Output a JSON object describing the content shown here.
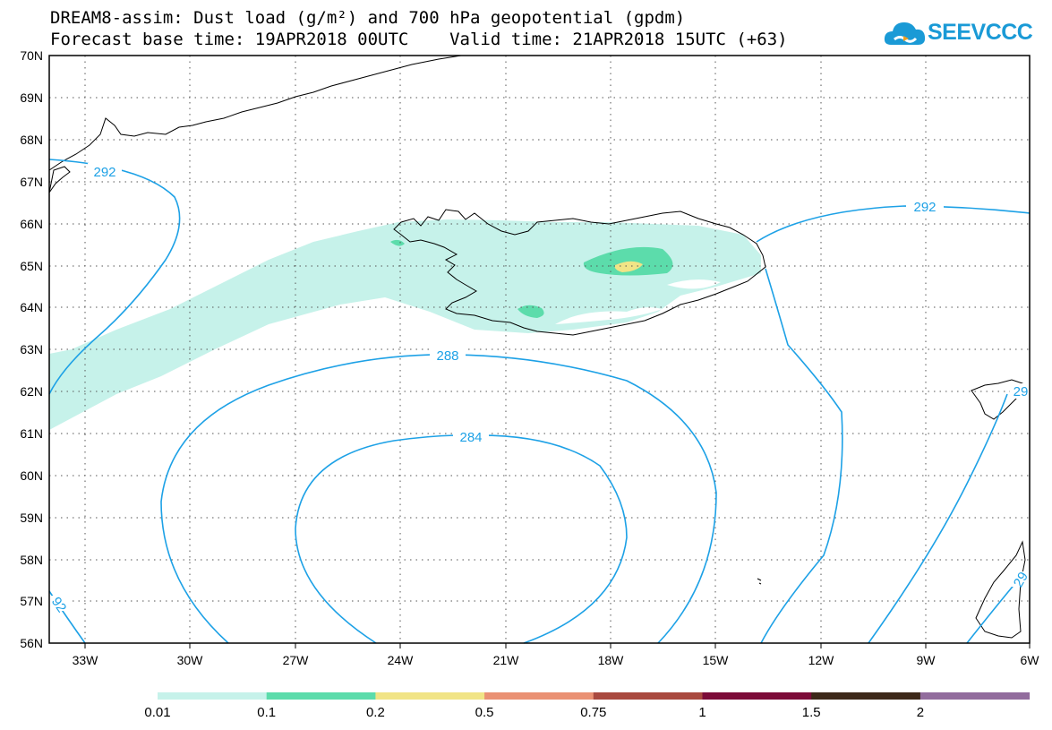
{
  "header": {
    "title_line1": "DREAM8-assim: Dust load (g/m²) and 700 hPa geopotential (gpdm)",
    "title_line2": "Forecast base time: 19APR2018 00UTC    Valid time: 21APR2018 15UTC (+63)",
    "logo_text": "SEEVCCC",
    "logo_icon": "cloud-icon"
  },
  "map": {
    "lat_labels": [
      "70N",
      "69N",
      "68N",
      "67N",
      "66N",
      "65N",
      "64N",
      "63N",
      "62N",
      "61N",
      "60N",
      "59N",
      "58N",
      "57N",
      "56N"
    ],
    "lon_labels": [
      "33W",
      "30W",
      "27W",
      "24W",
      "21W",
      "18W",
      "15W",
      "12W",
      "9W",
      "6W"
    ],
    "contour_labels": [
      "292",
      "292",
      "288",
      "284",
      "92",
      "29",
      "29"
    ],
    "contour_color": "#1da1e6"
  },
  "colorbar": {
    "labels": [
      "0.01",
      "0.1",
      "0.2",
      "0.5",
      "0.75",
      "1",
      "1.5",
      "2"
    ],
    "colors": [
      "#c6f2ea",
      "#5cdcab",
      "#f1e486",
      "#ea9173",
      "#a9493f",
      "#7c0b38",
      "#3d2819",
      "#926c9d"
    ]
  }
}
